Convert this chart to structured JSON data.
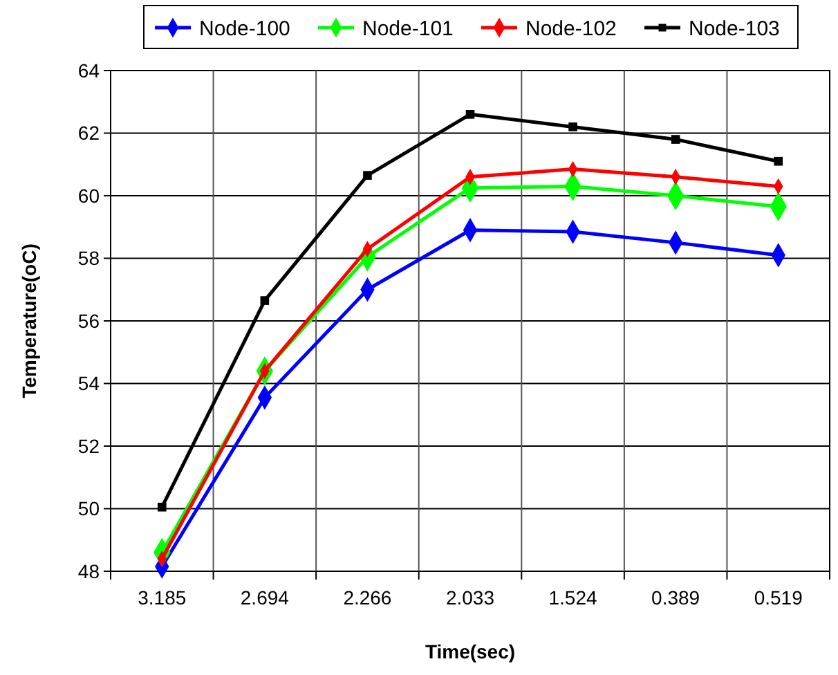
{
  "chart_data": {
    "type": "line",
    "xlabel": "Time(sec)",
    "ylabel": "Temperature(oC)",
    "categories": [
      "3.185",
      "2.694",
      "2.266",
      "2.033",
      "1.524",
      "0.389",
      "0.519"
    ],
    "series": [
      {
        "name": "Node-100",
        "color": "#0000ff",
        "marker": "diamond",
        "values": [
          48.15,
          53.55,
          57.0,
          58.9,
          58.85,
          58.5,
          58.1
        ]
      },
      {
        "name": "Node-101",
        "color": "#00ff00",
        "marker": "diamond",
        "values": [
          48.6,
          54.4,
          58.05,
          60.25,
          60.3,
          60.0,
          59.65
        ]
      },
      {
        "name": "Node-102",
        "color": "#ff0000",
        "marker": "diamond",
        "values": [
          48.4,
          54.4,
          58.3,
          60.6,
          60.85,
          60.6,
          60.3
        ]
      },
      {
        "name": "Node-103",
        "color": "#000000",
        "marker": "square",
        "values": [
          50.05,
          56.65,
          60.65,
          62.6,
          62.2,
          61.8,
          61.1
        ]
      }
    ],
    "ylim": [
      48,
      64
    ],
    "yticks": [
      48,
      50,
      52,
      54,
      56,
      58,
      60,
      62,
      64
    ],
    "grid": true,
    "legend": "top"
  }
}
